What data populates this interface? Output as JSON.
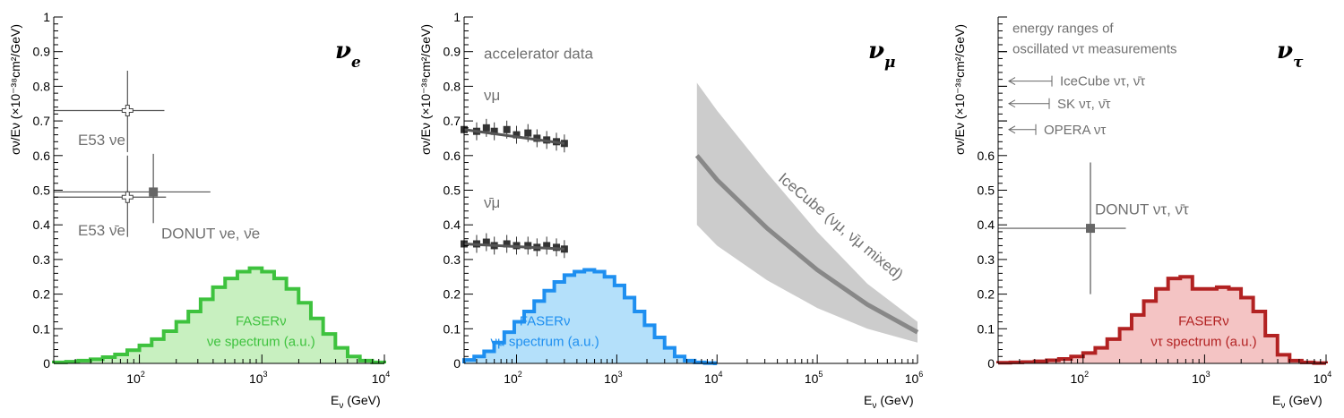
{
  "colors": {
    "nue": "#3ec23e",
    "nue_fill": "#c8f0c0",
    "numu": "#1e8ff0",
    "numu_fill": "#b4e0fa",
    "nutau": "#b22222",
    "nutau_fill": "#f4c4c4",
    "data": "#555555",
    "band": "#cccccc",
    "band_line": "#888888"
  },
  "chart_data": [
    {
      "type": "step-histogram + errorbars",
      "panel_symbol": "νe",
      "xlabel": "E",
      "xlabel_sub": "ν",
      "xlabel_unit": "(GeV)",
      "ylabel": "σν/Eν (×10⁻³⁸cm²/GeV)",
      "xlim": [
        20,
        10000
      ],
      "ylim": [
        0,
        1
      ],
      "xticks": [
        {
          "pos": 100,
          "base": "10",
          "exp": "2"
        },
        {
          "pos": 1000,
          "base": "10",
          "exp": "3"
        },
        {
          "pos": 10000,
          "base": "10",
          "exp": "4"
        }
      ],
      "yticks": [
        "0",
        "0.1",
        "0.2",
        "0.3",
        "0.4",
        "0.5",
        "0.6",
        "0.7",
        "0.8",
        "0.9",
        "1"
      ],
      "spectrum": {
        "label1": "FASERν",
        "label2": "νe spectrum (a.u.)",
        "bin_edges": [
          20,
          25.2,
          31.7,
          39.9,
          50.2,
          63.2,
          79.6,
          100,
          126,
          158,
          200,
          251,
          316,
          398,
          501,
          631,
          794,
          1000,
          1259,
          1585,
          1995,
          2512,
          3162,
          3981,
          5012,
          6310,
          7943,
          10000
        ],
        "values": [
          0.003,
          0.005,
          0.008,
          0.012,
          0.018,
          0.026,
          0.038,
          0.052,
          0.07,
          0.093,
          0.12,
          0.15,
          0.185,
          0.22,
          0.245,
          0.265,
          0.275,
          0.265,
          0.245,
          0.215,
          0.175,
          0.13,
          0.085,
          0.045,
          0.02,
          0.008,
          0.003
        ]
      },
      "points": [
        {
          "label": "E53 νe",
          "x": 80,
          "y": 0.73,
          "xlo": 20,
          "xhi": 160,
          "ylo": 0.61,
          "yhi": 0.845,
          "marker": "open-cross"
        },
        {
          "label": "E53 ν̄e",
          "x": 80,
          "y": 0.48,
          "xlo": 20,
          "xhi": 165,
          "ylo": 0.365,
          "yhi": 0.6,
          "marker": "open-cross"
        },
        {
          "label": "DONUT νe, ν̄e",
          "x": 130,
          "y": 0.495,
          "xlo": 20,
          "xhi": 380,
          "ylo": 0.405,
          "yhi": 0.605,
          "marker": "filled-square"
        }
      ],
      "annotations": {
        "e53_nu": "E53 νe",
        "e53_nubar": "E53 ν̄e",
        "donut": "DONUT νe, ν̄e"
      }
    },
    {
      "type": "step-histogram + errorbars + band",
      "panel_symbol": "νμ",
      "xlabel": "E",
      "xlabel_sub": "ν",
      "xlabel_unit": "(GeV)",
      "ylabel": "σν/Eν (×10⁻³⁸cm²/GeV)",
      "xlim": [
        30,
        1000000
      ],
      "ylim": [
        0,
        1
      ],
      "xticks": [
        {
          "pos": 100,
          "base": "10",
          "exp": "2"
        },
        {
          "pos": 1000,
          "base": "10",
          "exp": "3"
        },
        {
          "pos": 10000,
          "base": "10",
          "exp": "4"
        },
        {
          "pos": 100000,
          "base": "10",
          "exp": "5"
        },
        {
          "pos": 1000000,
          "base": "10",
          "exp": "6"
        }
      ],
      "yticks": [
        "0",
        "0.1",
        "0.2",
        "0.3",
        "0.4",
        "0.5",
        "0.6",
        "0.7",
        "0.8",
        "0.9",
        "1"
      ],
      "spectrum": {
        "label1": "FASERν",
        "label2": "νμ spectrum (a.u.)",
        "bin_edges": [
          30,
          37.8,
          47.5,
          59.8,
          75.4,
          94.9,
          119,
          150,
          189,
          238,
          300,
          378,
          475,
          598,
          754,
          949,
          1194,
          1503,
          1893,
          2383,
          3000,
          3777,
          4755,
          5986,
          7536,
          9487,
          10000
        ],
        "values": [
          0.01,
          0.02,
          0.035,
          0.06,
          0.09,
          0.12,
          0.15,
          0.18,
          0.21,
          0.235,
          0.255,
          0.265,
          0.27,
          0.265,
          0.25,
          0.225,
          0.19,
          0.15,
          0.11,
          0.075,
          0.045,
          0.02,
          0.008,
          0.003,
          0.001,
          0
        ]
      },
      "accelerator_numu": {
        "x": [
          30,
          40,
          50,
          60,
          80,
          100,
          130,
          160,
          200,
          250,
          300
        ],
        "y": [
          0.675,
          0.67,
          0.68,
          0.67,
          0.675,
          0.66,
          0.665,
          0.65,
          0.645,
          0.64,
          0.635
        ]
      },
      "accelerator_numubar": {
        "x": [
          30,
          40,
          50,
          60,
          80,
          100,
          130,
          160,
          200,
          250,
          300
        ],
        "y": [
          0.345,
          0.345,
          0.35,
          0.34,
          0.345,
          0.34,
          0.34,
          0.335,
          0.34,
          0.335,
          0.33
        ]
      },
      "icecube": {
        "label": "IceCube (νμ, ν̄μ mixed)",
        "x": [
          6300,
          10000,
          31600,
          100000,
          316000,
          1000000
        ],
        "central": [
          0.6,
          0.53,
          0.39,
          0.27,
          0.17,
          0.09
        ],
        "upper": [
          0.81,
          0.73,
          0.55,
          0.38,
          0.23,
          0.12
        ],
        "lower": [
          0.4,
          0.34,
          0.24,
          0.16,
          0.1,
          0.06
        ]
      },
      "annotations": {
        "accelerator": "accelerator data",
        "numu": "νμ",
        "numubar": "ν̄μ"
      }
    },
    {
      "type": "step-histogram + errorbars",
      "panel_symbol": "ντ",
      "xlabel": "E",
      "xlabel_sub": "ν",
      "xlabel_unit": "(GeV)",
      "ylabel": "σν/Eν (×10⁻³⁸cm²/GeV)",
      "xlim": [
        20,
        10000
      ],
      "ylim": [
        0,
        1
      ],
      "xticks": [
        {
          "pos": 100,
          "base": "10",
          "exp": "2"
        },
        {
          "pos": 1000,
          "base": "10",
          "exp": "3"
        },
        {
          "pos": 10000,
          "base": "10",
          "exp": "4"
        }
      ],
      "yticks": [
        "0",
        "0.1",
        "0.2",
        "0.3",
        "0.4",
        "0.5",
        "0.6"
      ],
      "spectrum": {
        "label1": "FASERν",
        "label2": "ντ spectrum (a.u.)",
        "bin_edges": [
          20,
          25.2,
          31.7,
          39.9,
          50.2,
          63.2,
          79.6,
          100,
          126,
          158,
          200,
          251,
          316,
          398,
          501,
          631,
          794,
          1000,
          1259,
          1585,
          1995,
          2512,
          3162,
          3981,
          5012,
          6310,
          7943,
          10000
        ],
        "values": [
          0.002,
          0.003,
          0.004,
          0.006,
          0.009,
          0.013,
          0.02,
          0.03,
          0.045,
          0.07,
          0.1,
          0.14,
          0.18,
          0.215,
          0.245,
          0.25,
          0.215,
          0.215,
          0.22,
          0.215,
          0.19,
          0.15,
          0.08,
          0.025,
          0.008,
          0.003,
          0.001
        ]
      },
      "points": [
        {
          "label": "DONUT ντ, ν̄τ",
          "x": 115,
          "y": 0.39,
          "xlo": 20,
          "xhi": 225,
          "ylo": 0.2,
          "yhi": 0.58,
          "marker": "filled-square"
        }
      ],
      "energy_ranges": [
        {
          "label": "IceCube ντ, ν̄τ",
          "y": 0.815
        },
        {
          "label": "SK ντ, ν̄τ",
          "y": 0.75
        },
        {
          "label": "OPERA ντ",
          "y": 0.675
        }
      ],
      "annotations": {
        "header1": "energy ranges of",
        "header2": "oscillated ντ measurements",
        "donut": "DONUT ντ, ν̄τ"
      }
    }
  ]
}
